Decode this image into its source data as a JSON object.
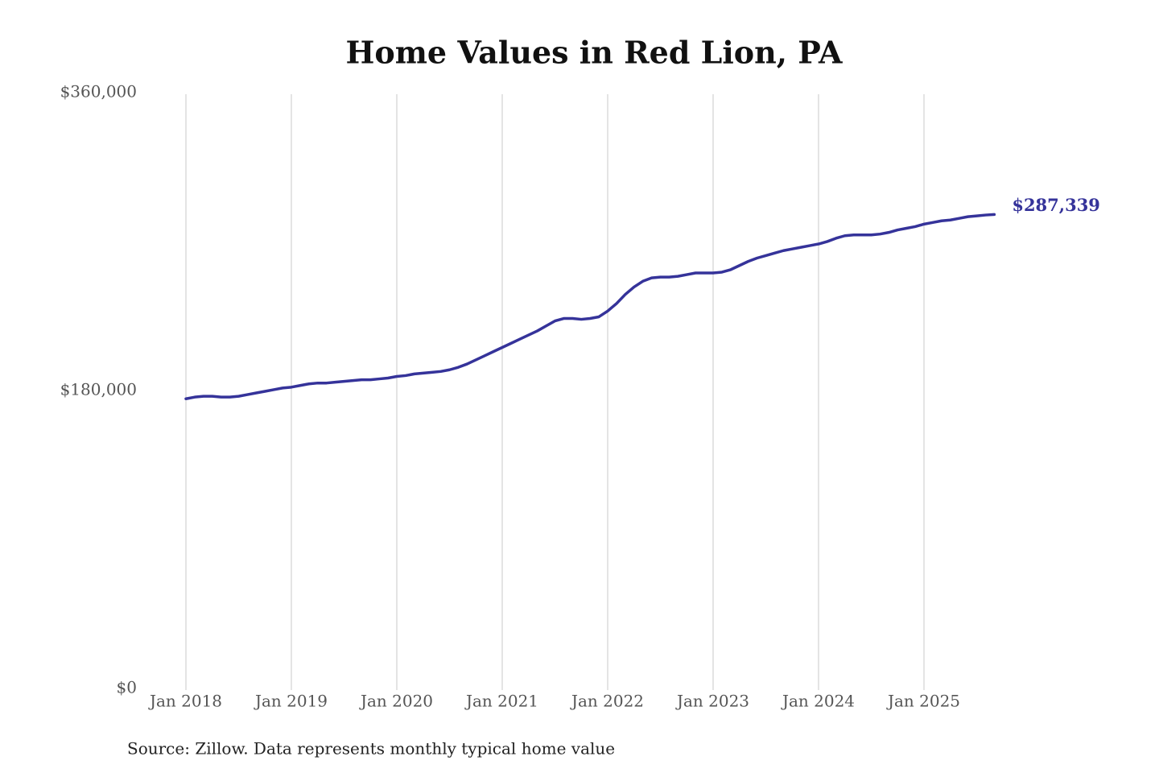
{
  "chart_data": {
    "type": "line",
    "title": "Home Values in Red Lion, PA",
    "note": "Source: Zillow. Data represents monthly typical home value",
    "color": "#35339a",
    "grid": "x",
    "categories": [
      "Jan 2018",
      null,
      null,
      null,
      null,
      null,
      null,
      null,
      null,
      null,
      null,
      null,
      "Jan 2019",
      null,
      null,
      null,
      null,
      null,
      null,
      null,
      null,
      null,
      null,
      null,
      "Jan 2020",
      null,
      null,
      null,
      null,
      null,
      null,
      null,
      null,
      null,
      null,
      null,
      "Jan 2021",
      null,
      null,
      null,
      null,
      null,
      null,
      null,
      null,
      null,
      null,
      null,
      "Jan 2022",
      null,
      null,
      null,
      null,
      null,
      null,
      null,
      null,
      null,
      null,
      null,
      "Jan 2023",
      null,
      null,
      null,
      null,
      null,
      null,
      null,
      null,
      null,
      null,
      null,
      "Jan 2024",
      null,
      null,
      null,
      null,
      null,
      null,
      null,
      null,
      null,
      null,
      null,
      "Jan 2025",
      null,
      null,
      null,
      null,
      null,
      null,
      null,
      null
    ],
    "values": [
      176000,
      177000,
      177500,
      177500,
      177000,
      177000,
      177500,
      178500,
      179500,
      180500,
      181500,
      182500,
      183000,
      184000,
      185000,
      185500,
      185500,
      186000,
      186500,
      187000,
      187500,
      187500,
      188000,
      188500,
      189500,
      190000,
      191000,
      191500,
      192000,
      192500,
      193500,
      195000,
      197000,
      199500,
      202000,
      204500,
      207000,
      209500,
      212000,
      214500,
      217000,
      220000,
      223000,
      224500,
      224500,
      224000,
      224500,
      225500,
      229000,
      233500,
      239000,
      243500,
      247000,
      249000,
      249500,
      249500,
      250000,
      251000,
      252000,
      252000,
      252000,
      252500,
      254000,
      256500,
      259000,
      261000,
      262500,
      264000,
      265500,
      266500,
      267500,
      268500,
      269500,
      271000,
      273000,
      274500,
      275000,
      275000,
      275000,
      275500,
      276500,
      278000,
      279000,
      280000,
      281500,
      282500,
      283500,
      284000,
      285000,
      286000,
      286500,
      287000,
      287339
    ],
    "value_labels": [
      null,
      null,
      null,
      null,
      null,
      null,
      null,
      null,
      null,
      null,
      null,
      null,
      null,
      null,
      null,
      null,
      null,
      null,
      null,
      null,
      null,
      null,
      null,
      null,
      null,
      null,
      null,
      null,
      null,
      null,
      null,
      null,
      null,
      null,
      null,
      null,
      null,
      null,
      null,
      null,
      null,
      null,
      null,
      null,
      null,
      null,
      null,
      null,
      null,
      null,
      null,
      null,
      null,
      null,
      null,
      null,
      null,
      null,
      null,
      null,
      null,
      null,
      null,
      null,
      null,
      null,
      null,
      null,
      null,
      null,
      null,
      null,
      null,
      null,
      null,
      null,
      null,
      null,
      null,
      null,
      null,
      null,
      null,
      null,
      null,
      null,
      null,
      null,
      null,
      null,
      null,
      null,
      "$287,339"
    ],
    "ylim": [
      0,
      360000
    ],
    "yticks": [
      {
        "value": 0,
        "label": "$0"
      },
      {
        "value": 180000,
        "label": "$180,000"
      },
      {
        "value": 360000,
        "label": "$360,000"
      }
    ]
  }
}
